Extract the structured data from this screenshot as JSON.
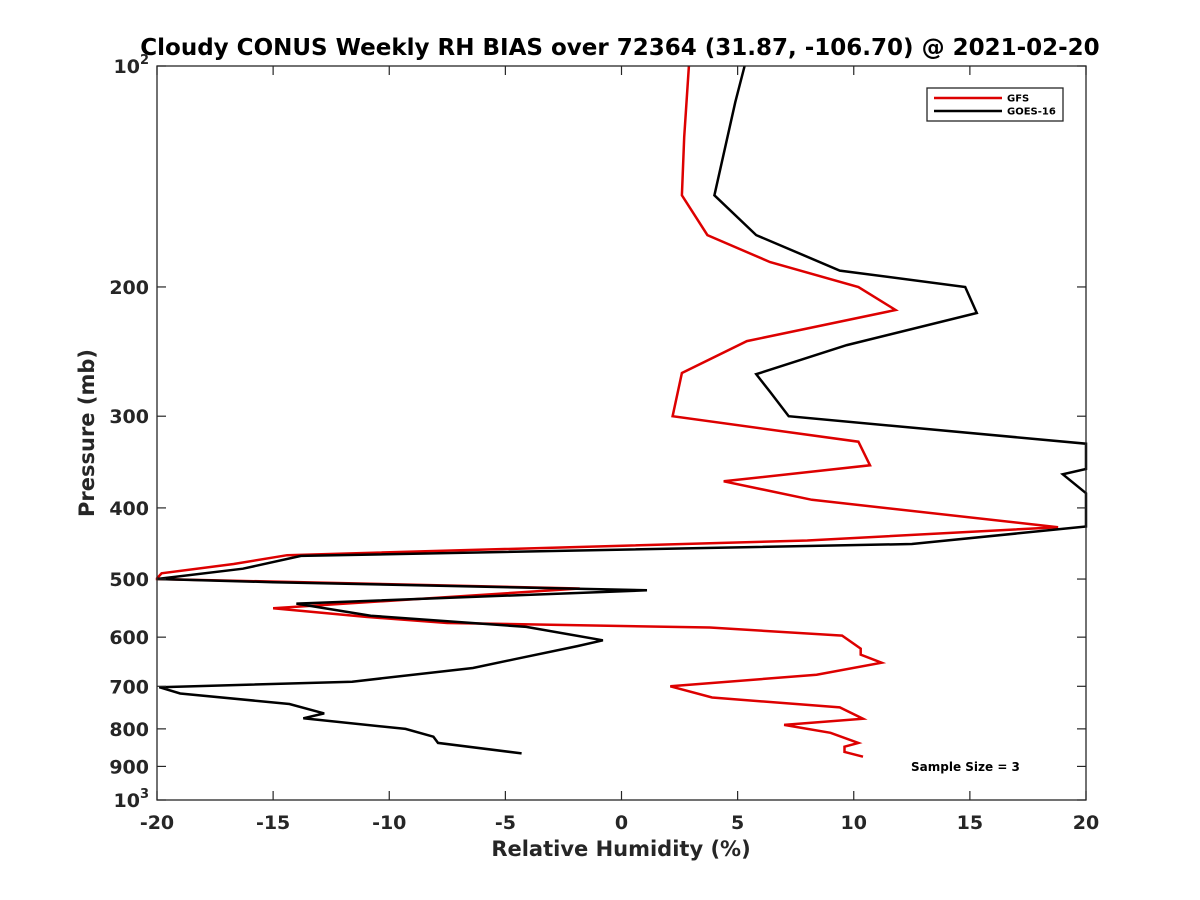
{
  "chart_data": {
    "type": "line",
    "title": "Cloudy CONUS Weekly RH BIAS over 72364 (31.87, -106.70) @ 2021-02-20",
    "xlabel": "Relative Humidity (%)",
    "ylabel": "Pressure (mb)",
    "xlim": [
      -20,
      20
    ],
    "ylim": [
      100,
      1000
    ],
    "yscale": "log",
    "y_reversed": true,
    "grid": false,
    "legend_position": "top-right",
    "x_ticks": [
      "-20",
      "-15",
      "-10",
      "-5",
      "0",
      "5",
      "10",
      "15",
      "20"
    ],
    "x_tick_values": [
      -20,
      -15,
      -10,
      -5,
      0,
      5,
      10,
      15,
      20
    ],
    "y_ticks": [
      {
        "value": 100,
        "base": "10",
        "exp": "2"
      },
      {
        "value": 200,
        "label": "200"
      },
      {
        "value": 300,
        "label": "300"
      },
      {
        "value": 400,
        "label": "400"
      },
      {
        "value": 500,
        "label": "500"
      },
      {
        "value": 600,
        "label": "600"
      },
      {
        "value": 700,
        "label": "700"
      },
      {
        "value": 800,
        "label": "800"
      },
      {
        "value": 900,
        "label": "900"
      },
      {
        "value": 1000,
        "base": "10",
        "exp": "3"
      }
    ],
    "annotation": "Sample Size = 3",
    "series": [
      {
        "name": "GFS",
        "color": "#dd0000",
        "points": [
          [
            2.9,
            100
          ],
          [
            2.7,
            125
          ],
          [
            2.6,
            150
          ],
          [
            3.7,
            170
          ],
          [
            6.4,
            185
          ],
          [
            10.2,
            200
          ],
          [
            11.8,
            215
          ],
          [
            5.4,
            237
          ],
          [
            2.6,
            262
          ],
          [
            2.2,
            300
          ],
          [
            10.2,
            325
          ],
          [
            10.7,
            350
          ],
          [
            4.4,
            368
          ],
          [
            8.2,
            390
          ],
          [
            18.8,
            425
          ],
          [
            8.0,
            443
          ],
          [
            -14.4,
            464
          ],
          [
            -16.7,
            477
          ],
          [
            -19.8,
            491
          ],
          [
            -20,
            499
          ],
          [
            -20,
            500
          ],
          [
            -1.8,
            515
          ],
          [
            -15.0,
            548
          ],
          [
            -11.0,
            563
          ],
          [
            -7.5,
            574
          ],
          [
            3.8,
            582
          ],
          [
            9.5,
            597
          ],
          [
            10.3,
            622
          ],
          [
            10.3,
            634
          ],
          [
            11.2,
            650
          ],
          [
            8.4,
            675
          ],
          [
            2.1,
            700
          ],
          [
            3.9,
            725
          ],
          [
            9.4,
            748
          ],
          [
            10.4,
            775
          ],
          [
            7.0,
            790
          ],
          [
            9.0,
            810
          ],
          [
            10.2,
            836
          ],
          [
            9.6,
            846
          ],
          [
            9.6,
            860
          ],
          [
            10.4,
            873
          ]
        ]
      },
      {
        "name": "GOES-16",
        "color": "#000000",
        "points": [
          [
            5.3,
            100
          ],
          [
            4.9,
            112
          ],
          [
            4.0,
            150
          ],
          [
            5.8,
            170
          ],
          [
            9.4,
            190
          ],
          [
            14.8,
            200
          ],
          [
            15.3,
            217
          ],
          [
            9.7,
            240
          ],
          [
            5.8,
            263
          ],
          [
            6.4,
            278
          ],
          [
            7.2,
            300
          ],
          [
            20,
            327
          ],
          [
            20,
            354
          ],
          [
            19.0,
            360
          ],
          [
            20,
            382
          ],
          [
            20,
            424
          ],
          [
            12.5,
            448
          ],
          [
            -13.8,
            465
          ],
          [
            -16.3,
            484
          ],
          [
            -20,
            500
          ],
          [
            -15.0,
            505
          ],
          [
            1.1,
            518
          ],
          [
            -14.0,
            540
          ],
          [
            -10.8,
            561
          ],
          [
            -4.1,
            581
          ],
          [
            -0.8,
            606
          ],
          [
            -1.9,
            617
          ],
          [
            -4.6,
            643
          ],
          [
            -6.4,
            661
          ],
          [
            -11.6,
            690
          ],
          [
            -19.9,
            702
          ],
          [
            -19.0,
            716
          ],
          [
            -14.3,
            740
          ],
          [
            -12.8,
            762
          ],
          [
            -13.7,
            774
          ],
          [
            -9.3,
            800
          ],
          [
            -8.1,
            820
          ],
          [
            -7.9,
            836
          ],
          [
            -4.3,
            864
          ]
        ]
      }
    ]
  }
}
